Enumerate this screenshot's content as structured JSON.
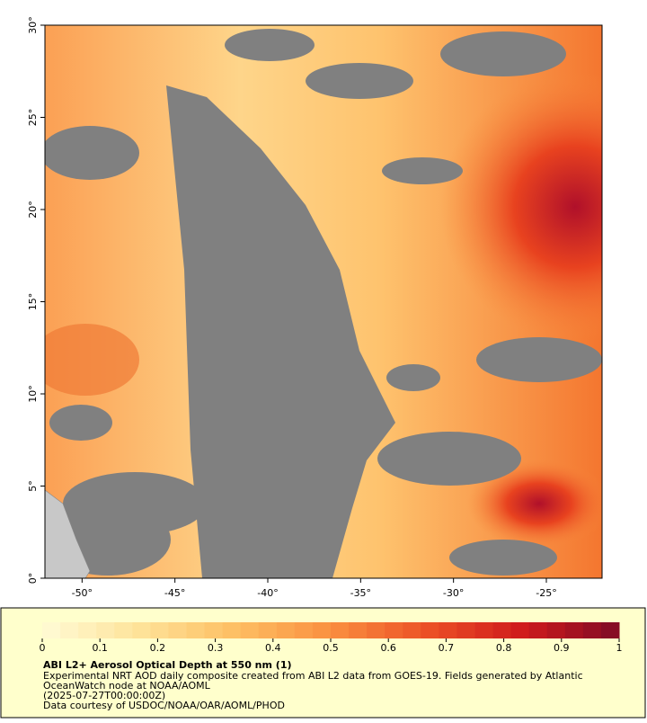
{
  "map": {
    "lon_range": [
      -52,
      -22
    ],
    "lat_range": [
      0,
      30
    ],
    "lon_ticks": [
      {
        "value": -50,
        "label": "-50°"
      },
      {
        "value": -45,
        "label": "-45°"
      },
      {
        "value": -40,
        "label": "-40°"
      },
      {
        "value": -35,
        "label": "-35°"
      },
      {
        "value": -30,
        "label": "-30°"
      },
      {
        "value": -25,
        "label": "-25°"
      }
    ],
    "lat_ticks": [
      {
        "value": 0,
        "label": "0°"
      },
      {
        "value": 5,
        "label": "5°"
      },
      {
        "value": 10,
        "label": "10°"
      },
      {
        "value": 15,
        "label": "15°"
      },
      {
        "value": 20,
        "label": "20°"
      },
      {
        "value": 25,
        "label": "25°"
      },
      {
        "value": 30,
        "label": "30°"
      }
    ]
  },
  "colorbar": {
    "range": [
      0,
      1
    ],
    "ticks": [
      0,
      0.1,
      0.2,
      0.3,
      0.4,
      0.5,
      0.6,
      0.7,
      0.8,
      0.9,
      1
    ],
    "colormap": [
      "#fffbd6",
      "#fee39a",
      "#fdbf63",
      "#fa8f40",
      "#ec5126",
      "#cf1a1c",
      "#7f0a26"
    ]
  },
  "caption": {
    "title": "ABI L2+ Aerosol Optical Depth at 550 nm (1)",
    "lines": [
      "Experimental NRT AOD daily composite created from ABI L2 data from GOES-19. Fields generated by Atlantic",
      "OceanWatch node at NOAA/AOML",
      "(2025-07-27T00:00:00Z)",
      "Data courtesy of USDOC/NOAA/OAR/AOML/PHOD"
    ]
  }
}
